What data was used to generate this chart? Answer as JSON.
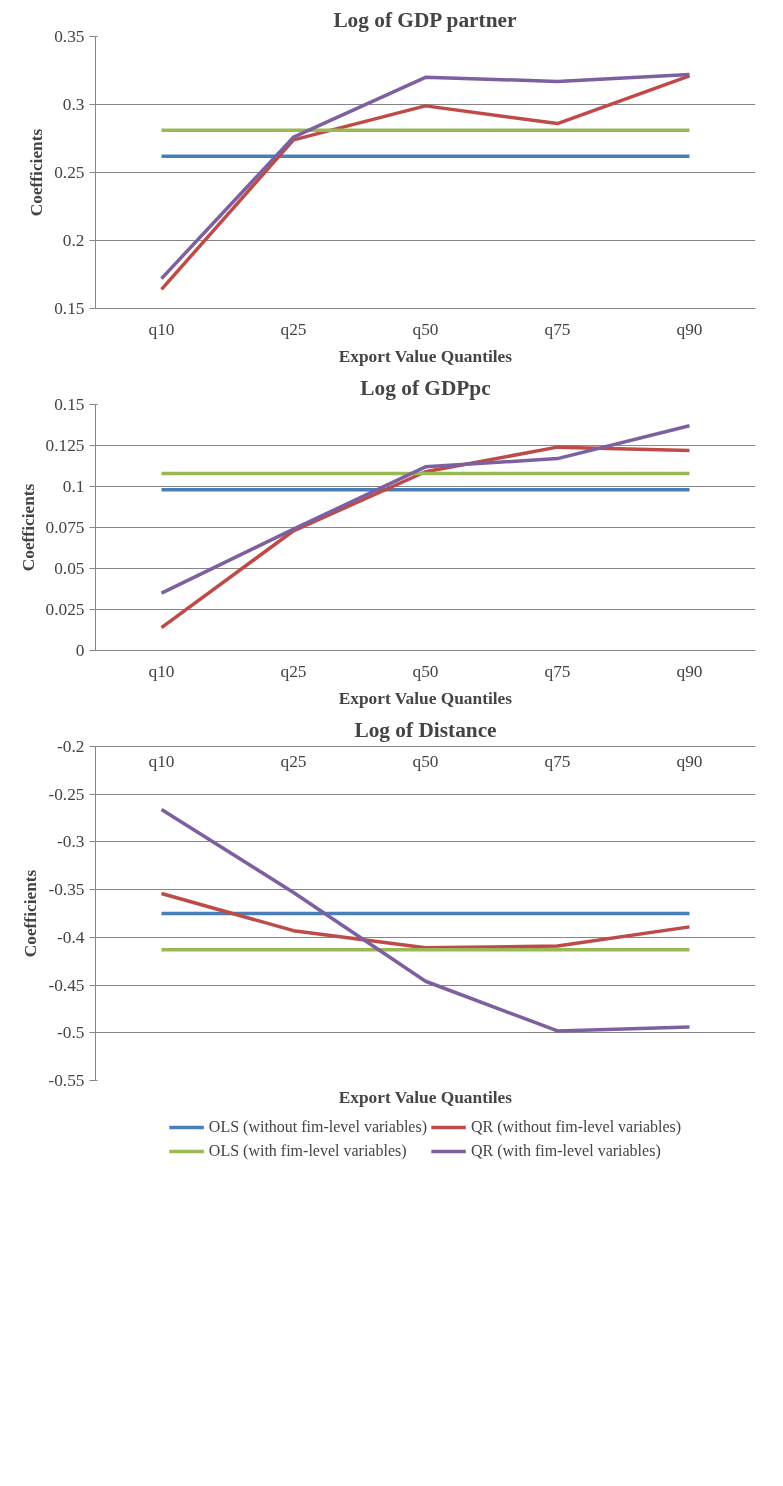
{
  "chart_data": [
    {
      "type": "line",
      "title": "Log of GDP partner",
      "xlabel": "Export Value Quantiles",
      "ylabel": "Coefficients",
      "categories": [
        "q10",
        "q25",
        "q50",
        "q75",
        "q90"
      ],
      "ylim": [
        0.15,
        0.35
      ],
      "yticks": [
        0.15,
        0.2,
        0.25,
        0.3,
        0.35
      ],
      "grid": "y",
      "line_style": "solid",
      "series": [
        {
          "color": "#4a7ebb",
          "values": [
            0.262,
            0.262,
            0.262,
            0.262,
            0.262
          ]
        },
        {
          "color": "#be4b48",
          "values": [
            0.164,
            0.274,
            0.299,
            0.286,
            0.321
          ]
        },
        {
          "color": "#98b954",
          "values": [
            0.281,
            0.281,
            0.281,
            0.281,
            0.281
          ]
        },
        {
          "color": "#7d60a0",
          "values": [
            0.172,
            0.276,
            0.32,
            0.317,
            0.322
          ]
        }
      ]
    },
    {
      "type": "line",
      "title": "Log of GDPpc",
      "xlabel": "Export Value Quantiles",
      "ylabel": "Coefficients",
      "categories": [
        "q10",
        "q25",
        "q50",
        "q75",
        "q90"
      ],
      "ylim": [
        0,
        0.15
      ],
      "yticks": [
        0,
        0.025,
        0.05,
        0.075,
        0.1,
        0.125,
        0.15
      ],
      "grid": "y",
      "line_style": "solid",
      "series": [
        {
          "color": "#4a7ebb",
          "values": [
            0.098,
            0.098,
            0.098,
            0.098,
            0.098
          ]
        },
        {
          "color": "#be4b48",
          "values": [
            0.014,
            0.073,
            0.109,
            0.124,
            0.122
          ]
        },
        {
          "color": "#98b954",
          "values": [
            0.108,
            0.108,
            0.108,
            0.108,
            0.108
          ]
        },
        {
          "color": "#7d60a0",
          "values": [
            0.035,
            0.074,
            0.112,
            0.117,
            0.137
          ]
        }
      ]
    },
    {
      "type": "line",
      "title": "Log of Distance",
      "xlabel": "Export Value Quantiles",
      "ylabel": "Coefficients",
      "categories": [
        "q10",
        "q25",
        "q50",
        "q75",
        "q90"
      ],
      "ylim": [
        -0.55,
        -0.2
      ],
      "yticks": [
        -0.55,
        -0.5,
        -0.45,
        -0.4,
        -0.35,
        -0.3,
        -0.25,
        -0.2
      ],
      "grid": "y",
      "line_style": "solid",
      "legend": "bottom",
      "series": [
        {
          "name": "OLS (without fim-level variables)",
          "color": "#4a7ebb",
          "values": [
            -0.375,
            -0.375,
            -0.375,
            -0.375,
            -0.375
          ]
        },
        {
          "name": "QR (without fim-level variables)",
          "color": "#be4b48",
          "values": [
            -0.354,
            -0.393,
            -0.411,
            -0.409,
            -0.389
          ]
        },
        {
          "name": "OLS (with fim-level variables)",
          "color": "#98b954",
          "values": [
            -0.413,
            -0.413,
            -0.413,
            -0.413,
            -0.413
          ]
        },
        {
          "name": "QR (with fim-level variables)",
          "color": "#7d60a0",
          "values": [
            -0.266,
            -0.353,
            -0.446,
            -0.498,
            -0.494
          ]
        }
      ]
    }
  ]
}
